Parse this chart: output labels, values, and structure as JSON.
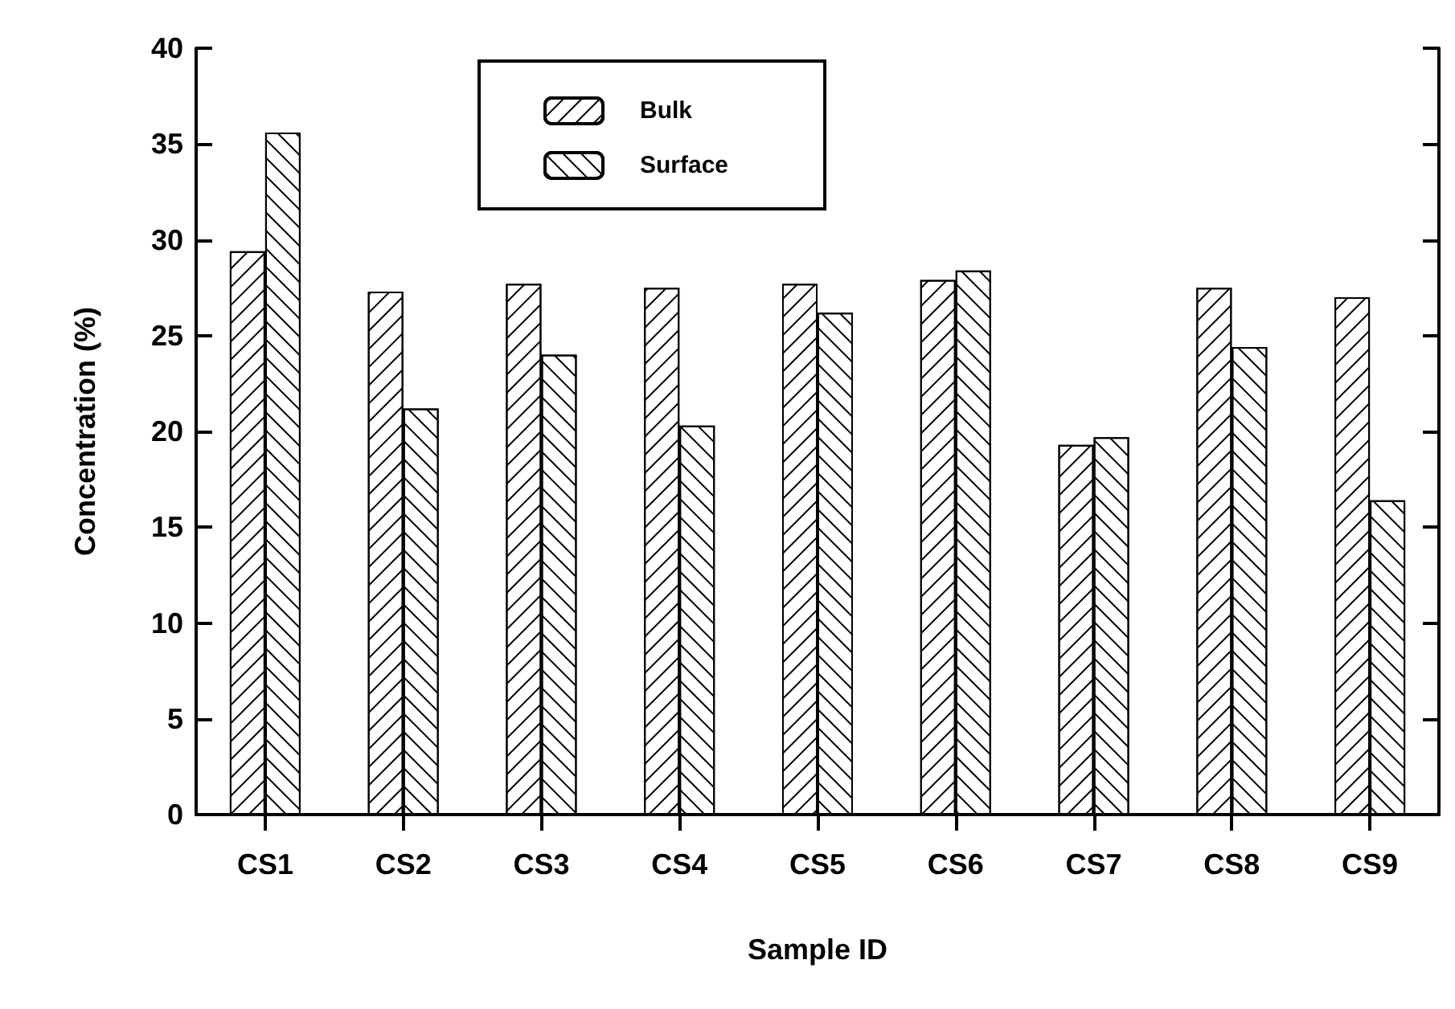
{
  "chart_data": {
    "type": "bar",
    "xlabel": "Sample ID",
    "ylabel": "Concentration (%)",
    "categories": [
      "CS1",
      "CS2",
      "CS3",
      "CS4",
      "CS5",
      "CS6",
      "CS7",
      "CS8",
      "CS9"
    ],
    "series": [
      {
        "name": "Bulk",
        "color": "#000000",
        "values": [
          29.4,
          27.3,
          27.7,
          27.5,
          27.7,
          27.9,
          19.3,
          27.5,
          27.0
        ]
      },
      {
        "name": "Surface",
        "color": "#000000",
        "values": [
          35.6,
          21.2,
          24.0,
          20.3,
          26.2,
          28.4,
          19.7,
          24.4,
          16.4
        ]
      }
    ],
    "ylim": [
      0,
      40
    ],
    "yticks": [
      0,
      5,
      10,
      15,
      20,
      25,
      30,
      35,
      40
    ],
    "grid": false,
    "legend": "top left"
  }
}
